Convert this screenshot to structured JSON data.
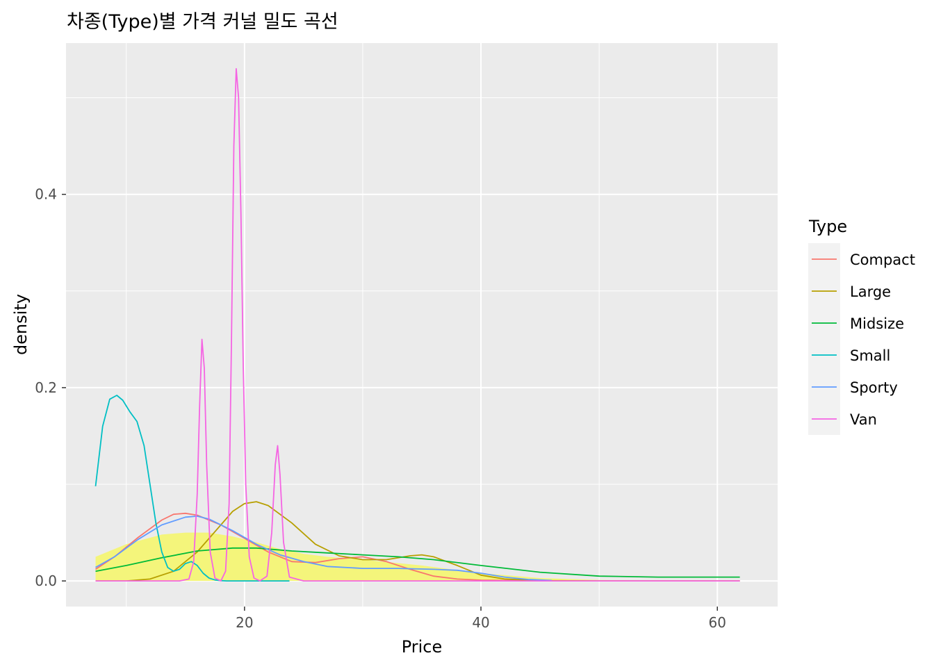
{
  "chart_data": {
    "type": "line",
    "title": "차종(Type)별 가격 커널 밀도 곡선",
    "xlabel": "Price",
    "ylabel": "density",
    "xlim": [
      4.9,
      65.1
    ],
    "ylim": [
      -0.0265,
      0.5565
    ],
    "x_ticks": [
      20,
      40,
      60
    ],
    "x_tick_labels": [
      "20",
      "40",
      "60"
    ],
    "y_ticks": [
      0.0,
      0.2,
      0.4
    ],
    "y_tick_labels": [
      "0.0",
      "0.2",
      "0.4"
    ],
    "grid": true,
    "panel_background": "#EBEBEB",
    "legend": {
      "title": "Type",
      "position": "right",
      "entries": [
        "Compact",
        "Large",
        "Midsize",
        "Small",
        "Sporty",
        "Van"
      ]
    },
    "overall_density_area": {
      "fill": "#F4F57B",
      "x": [
        7.4,
        10,
        13,
        15,
        17,
        19,
        21,
        23,
        25,
        27,
        30,
        35,
        40,
        45,
        50,
        55,
        61.9
      ],
      "y": [
        0.025,
        0.038,
        0.048,
        0.05,
        0.05,
        0.046,
        0.04,
        0.033,
        0.028,
        0.025,
        0.022,
        0.016,
        0.008,
        0.003,
        0.001,
        0.0003,
        0.0
      ]
    },
    "series": [
      {
        "name": "Compact",
        "color": "#F8766D",
        "x": [
          7.4,
          9,
          11,
          13,
          14,
          15,
          16,
          18,
          20,
          22,
          24,
          26,
          28,
          30,
          32,
          34,
          36,
          38,
          40,
          45,
          50,
          55,
          61.9
        ],
        "y": [
          0.012,
          0.025,
          0.045,
          0.063,
          0.069,
          0.07,
          0.068,
          0.058,
          0.044,
          0.03,
          0.02,
          0.019,
          0.023,
          0.025,
          0.02,
          0.012,
          0.005,
          0.002,
          0.0008,
          0.0001,
          0.0,
          0.0,
          0.0
        ]
      },
      {
        "name": "Large",
        "color": "#B79F00",
        "x": [
          7.4,
          10,
          12,
          14,
          16,
          18,
          19,
          20,
          21,
          22,
          24,
          26,
          28,
          30,
          32,
          34,
          35,
          36,
          38,
          40,
          42,
          45,
          50,
          61.9
        ],
        "y": [
          0.0,
          0.0,
          0.002,
          0.01,
          0.03,
          0.058,
          0.072,
          0.08,
          0.082,
          0.078,
          0.06,
          0.038,
          0.026,
          0.022,
          0.022,
          0.026,
          0.027,
          0.025,
          0.016,
          0.006,
          0.002,
          0.0003,
          0.0,
          0.0
        ]
      },
      {
        "name": "Midsize",
        "color": "#00BA38",
        "x": [
          7.4,
          10,
          13,
          16,
          19,
          21,
          24,
          27,
          30,
          33,
          36,
          40,
          45,
          50,
          55,
          61.9
        ],
        "y": [
          0.01,
          0.016,
          0.024,
          0.031,
          0.034,
          0.034,
          0.031,
          0.029,
          0.027,
          0.025,
          0.022,
          0.016,
          0.009,
          0.005,
          0.004,
          0.004
        ]
      },
      {
        "name": "Small",
        "color": "#00BFC4",
        "x": [
          7.4,
          8,
          8.6,
          9.2,
          9.7,
          10.3,
          10.9,
          11.5,
          12.0,
          12.5,
          13.0,
          13.5,
          14.0,
          14.5,
          15.0,
          15.5,
          16.0,
          16.5,
          17.0,
          17.5,
          18.0,
          18.5,
          19.0,
          20.0,
          21.0,
          22.0,
          23.0,
          23.8
        ],
        "y": [
          0.098,
          0.16,
          0.188,
          0.192,
          0.187,
          0.175,
          0.165,
          0.14,
          0.1,
          0.06,
          0.03,
          0.014,
          0.01,
          0.012,
          0.018,
          0.02,
          0.016,
          0.008,
          0.003,
          0.001,
          0.0003,
          0.0,
          0.0,
          0.0,
          0.0,
          0.0,
          0.0,
          0.0
        ]
      },
      {
        "name": "Sporty",
        "color": "#619CFF",
        "x": [
          7.4,
          9,
          11,
          13,
          15,
          16,
          17,
          19,
          21,
          23,
          25,
          27,
          30,
          33,
          36,
          38,
          40,
          42,
          44,
          46
        ],
        "y": [
          0.014,
          0.025,
          0.043,
          0.058,
          0.066,
          0.067,
          0.064,
          0.052,
          0.038,
          0.027,
          0.02,
          0.015,
          0.013,
          0.013,
          0.012,
          0.011,
          0.008,
          0.004,
          0.0015,
          0.0005
        ]
      },
      {
        "name": "Van",
        "color": "#F564E3",
        "x": [
          7.4,
          14.5,
          15.3,
          15.7,
          16.0,
          16.2,
          16.4,
          16.6,
          16.8,
          17.1,
          17.5,
          18.0,
          18.4,
          18.7,
          18.9,
          19.1,
          19.3,
          19.5,
          19.7,
          19.9,
          20.1,
          20.4,
          20.8,
          21.3,
          21.9,
          22.3,
          22.6,
          22.8,
          23.0,
          23.3,
          23.8,
          25,
          30,
          40,
          50,
          61.9
        ],
        "y": [
          0.0,
          0.0,
          0.002,
          0.02,
          0.09,
          0.18,
          0.25,
          0.22,
          0.12,
          0.03,
          0.003,
          0.0,
          0.01,
          0.08,
          0.25,
          0.45,
          0.53,
          0.5,
          0.38,
          0.22,
          0.1,
          0.025,
          0.003,
          0.0,
          0.005,
          0.05,
          0.12,
          0.14,
          0.11,
          0.04,
          0.004,
          0.0,
          0.0,
          0.0,
          0.0,
          0.0
        ]
      }
    ]
  }
}
